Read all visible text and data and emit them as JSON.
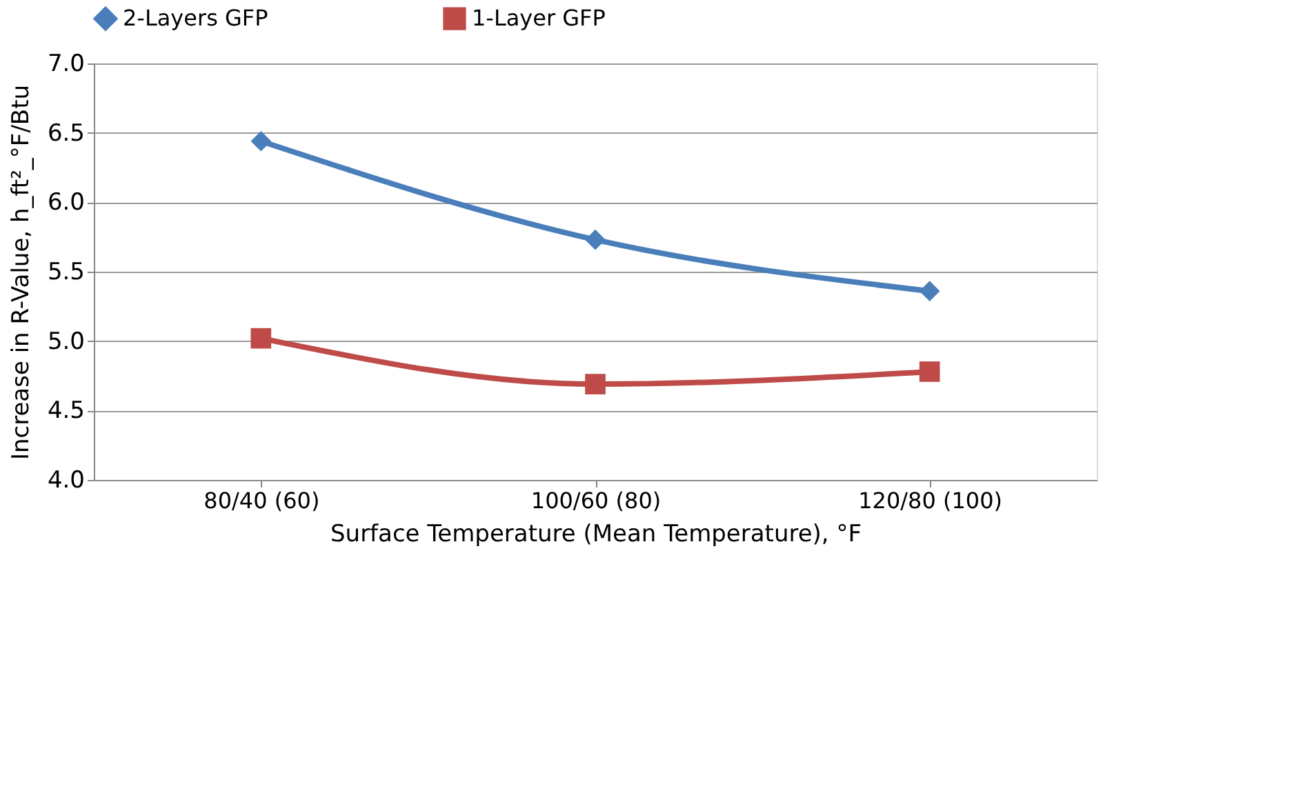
{
  "chart_data": {
    "type": "line",
    "xlabel": "Surface Temperature (Mean Temperature), °F",
    "ylabel": "Increase in R-Value, h_ft²_°F/Btu",
    "categories": [
      "80/40 (60)",
      "100/60 (80)",
      "120/80 (100)"
    ],
    "series": [
      {
        "name": "2-Layers GFP",
        "color": "#4a7ebb",
        "marker": "diamond",
        "values": [
          6.44,
          5.73,
          5.36
        ]
      },
      {
        "name": "1-Layer GFP",
        "color": "#be4b48",
        "marker": "square",
        "values": [
          5.02,
          4.69,
          4.78
        ]
      }
    ],
    "ylim": [
      4.0,
      7.0
    ],
    "yticks": [
      {
        "value": 4.0,
        "label": "4.0"
      },
      {
        "value": 4.5,
        "label": "4.5"
      },
      {
        "value": 5.0,
        "label": "5.0"
      },
      {
        "value": 5.5,
        "label": "5.5"
      },
      {
        "value": 6.0,
        "label": "6.0"
      },
      {
        "value": 6.5,
        "label": "6.5"
      },
      {
        "value": 7.0,
        "label": "7.0"
      }
    ],
    "grid": "y",
    "legend": "top",
    "line_style": "solid"
  }
}
